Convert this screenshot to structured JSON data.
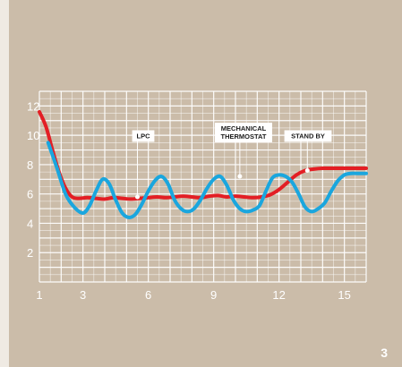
{
  "page_number": "3",
  "chart_data": {
    "type": "line",
    "title": "",
    "xlabel": "",
    "ylabel": "",
    "xlim": [
      1,
      16
    ],
    "ylim": [
      0,
      13
    ],
    "x_ticks": [
      1,
      3,
      6,
      9,
      12,
      15
    ],
    "y_ticks": [
      2,
      4,
      6,
      8,
      10,
      12
    ],
    "grid": true,
    "colors": {
      "grid": "#ffffff",
      "red": "#e31e24",
      "blue": "#1aa6de",
      "label_bg": "#ffffff",
      "label_text": "#1a1a1a",
      "tick_text": "#ffffff"
    },
    "series": [
      {
        "color": "#e31e24",
        "x": [
          1.0,
          1.3,
          1.6,
          1.9,
          2.2,
          2.5,
          2.8,
          3.2,
          3.6,
          4.0,
          4.4,
          4.8,
          5.2,
          5.6,
          6.0,
          6.4,
          6.8,
          7.2,
          7.6,
          8.0,
          8.4,
          8.8,
          9.2,
          9.6,
          10.0,
          10.4,
          10.8,
          11.2,
          11.6,
          12.0,
          12.4,
          12.8,
          13.2,
          13.6,
          14.0,
          14.4,
          14.8,
          15.2,
          15.6,
          16.0
        ],
        "y": [
          11.6,
          10.6,
          9.0,
          7.5,
          6.4,
          5.8,
          5.7,
          5.75,
          5.7,
          5.65,
          5.75,
          5.7,
          5.65,
          5.7,
          5.75,
          5.8,
          5.75,
          5.8,
          5.85,
          5.8,
          5.75,
          5.85,
          5.9,
          5.8,
          5.85,
          5.8,
          5.75,
          5.8,
          5.95,
          6.3,
          6.8,
          7.3,
          7.6,
          7.7,
          7.75,
          7.75,
          7.75,
          7.75,
          7.75,
          7.75
        ]
      },
      {
        "color": "#1aa6de",
        "x": [
          1.4,
          1.8,
          2.2,
          2.6,
          3.0,
          3.3,
          3.6,
          3.9,
          4.2,
          4.5,
          4.8,
          5.1,
          5.4,
          5.7,
          6.0,
          6.3,
          6.6,
          6.9,
          7.2,
          7.5,
          7.8,
          8.1,
          8.4,
          8.7,
          9.0,
          9.3,
          9.6,
          9.9,
          10.2,
          10.5,
          10.8,
          11.1,
          11.4,
          11.7,
          12.0,
          12.3,
          12.6,
          12.9,
          13.2,
          13.5,
          13.8,
          14.1,
          14.4,
          14.7,
          15.0,
          15.3,
          15.6,
          16.0
        ],
        "y": [
          9.5,
          7.8,
          6.0,
          5.1,
          4.7,
          5.2,
          6.2,
          7.0,
          6.7,
          5.6,
          4.7,
          4.4,
          4.6,
          5.3,
          6.2,
          6.9,
          7.2,
          6.7,
          5.6,
          5.0,
          4.8,
          5.0,
          5.6,
          6.4,
          7.0,
          7.2,
          6.6,
          5.6,
          5.0,
          4.8,
          4.9,
          5.2,
          6.2,
          7.1,
          7.3,
          7.2,
          6.8,
          6.0,
          5.1,
          4.8,
          5.0,
          5.4,
          6.2,
          6.9,
          7.3,
          7.4,
          7.4,
          7.4
        ]
      }
    ],
    "annotations": [
      {
        "text": "LPC",
        "x": 5.5,
        "y": 5.8
      },
      {
        "text": "MECHANICAL THERMOSTAT",
        "x": 10.2,
        "y": 7.2
      },
      {
        "text": "STAND BY",
        "x": 13.3,
        "y": 7.6
      }
    ]
  }
}
